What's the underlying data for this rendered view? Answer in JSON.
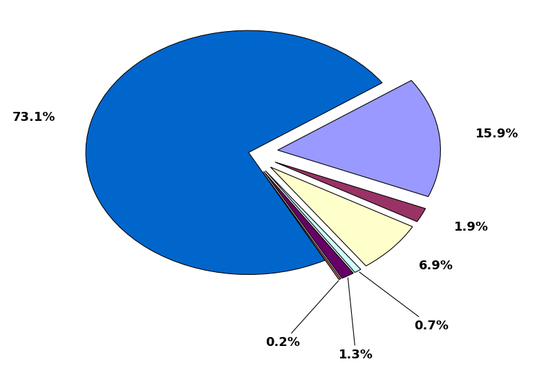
{
  "chart_data": {
    "type": "pie",
    "values": [
      73.1,
      15.9,
      1.9,
      6.9,
      0.7,
      1.3,
      0.2
    ],
    "value_labels": [
      "73.1%",
      "15.9%",
      "1.9%",
      "6.9%",
      "0.7%",
      "1.3%",
      "0.2%"
    ],
    "colors": [
      "#0066CC",
      "#9999FF",
      "#993366",
      "#FFFFCC",
      "#CCFFFF",
      "#660066",
      "#CC6666"
    ]
  }
}
